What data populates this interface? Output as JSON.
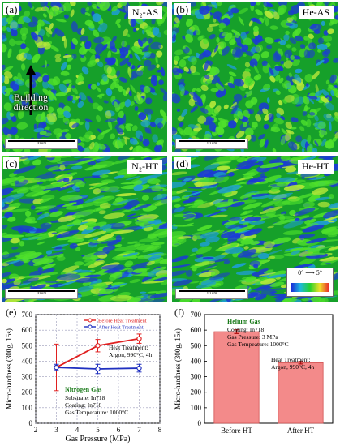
{
  "panels": {
    "a": {
      "label": "(a)",
      "condition": "N₂-AS",
      "scale": "10 um"
    },
    "b": {
      "label": "(b)",
      "condition": "He-AS",
      "scale": "10 um"
    },
    "c": {
      "label": "(c)",
      "condition": "N₂-HT",
      "scale": "10 um"
    },
    "d": {
      "label": "(d)",
      "condition": "He-HT",
      "scale": "10 um"
    }
  },
  "build_direction": "Building direction",
  "colorbar": {
    "min": "0°",
    "max": "5°",
    "colors": [
      "#1a20d8",
      "#1fb8e0",
      "#25d22c",
      "#f0e02a",
      "#e8202a"
    ]
  },
  "texture_colors": {
    "base": "#16a02a",
    "bright": "#4fe02c",
    "yellow": "#b6e83a",
    "blue": "#1c3ad6",
    "cyan": "#1e9ed0"
  },
  "chart_data": [
    {
      "panel": "(e)",
      "type": "line",
      "x": [
        3,
        5,
        7
      ],
      "xlabel": "Gas Pressure (MPa)",
      "ylabel": "Micro-hardness (300g, 15s)",
      "xlim": [
        2,
        8
      ],
      "ylim": [
        0,
        700
      ],
      "xticks": [
        2,
        3,
        4,
        5,
        6,
        7,
        8
      ],
      "yticks": [
        0,
        100,
        200,
        300,
        400,
        500,
        600,
        700
      ],
      "grid": true,
      "legend_position": "top-right",
      "series": [
        {
          "name": "Before Heat Treatment",
          "values": [
            360,
            500,
            545
          ],
          "errors": [
            150,
            40,
            30
          ],
          "color": "#e02020"
        },
        {
          "name": "After Heat Treatment",
          "values": [
            360,
            350,
            355
          ],
          "errors": [
            20,
            30,
            25
          ],
          "color": "#2030c0"
        }
      ],
      "annotations": [
        {
          "text": [
            "Heat Treatment:",
            "Argon, 990°C, 4h"
          ],
          "color": "#000000"
        },
        {
          "text": [
            "Nitrogen Gas"
          ],
          "color": "#1a7a1a"
        },
        {
          "text": [
            "Substrate: In718",
            "Coating: In718",
            "Gas Temperature: 1000°C"
          ],
          "color": "#000000"
        }
      ]
    },
    {
      "panel": "(f)",
      "type": "bar",
      "categories": [
        "Before HT",
        "After HT"
      ],
      "values": [
        590,
        390
      ],
      "errors": [
        12,
        8
      ],
      "ylabel": "Micro-hardness (300g, 15s)",
      "ylim": [
        0,
        700
      ],
      "yticks": [
        0,
        100,
        200,
        300,
        400,
        500,
        600,
        700
      ],
      "ytick_labels": [
        "0",
        "100",
        "200",
        "300",
        "400",
        "500",
        "600",
        "700"
      ],
      "grid": false,
      "bar_color": "#f38a8a",
      "annotations": [
        {
          "text": [
            "Helium Gas"
          ],
          "color": "#1a7a1a"
        },
        {
          "text": [
            "Coating: In718",
            "Gas Pressure: 3 MPa",
            "Gas Tempeature: 1000°C"
          ],
          "color": "#000000"
        },
        {
          "text": [
            "Heat Treatment:",
            "Argon, 990°C, 4h"
          ],
          "color": "#000000"
        }
      ]
    }
  ]
}
